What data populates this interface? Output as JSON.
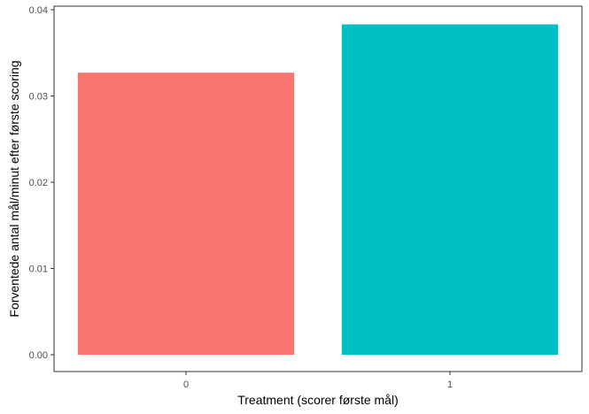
{
  "chart_data": {
    "type": "bar",
    "categories": [
      "0",
      "1"
    ],
    "values": [
      0.0327,
      0.0383
    ],
    "colors": [
      "#F8766D",
      "#00BFC4"
    ],
    "xlabel": "Treatment (scorer første mål)",
    "ylabel": "Forventede antal mål/minut efter første scoring",
    "ylim": [
      0,
      0.04
    ],
    "yticks": [
      0,
      0.01,
      0.02,
      0.03,
      0.04
    ],
    "ytick_labels": [
      "0.00",
      "0.01",
      "0.02",
      "0.03",
      "0.04"
    ],
    "grid": false,
    "legend": "none"
  }
}
